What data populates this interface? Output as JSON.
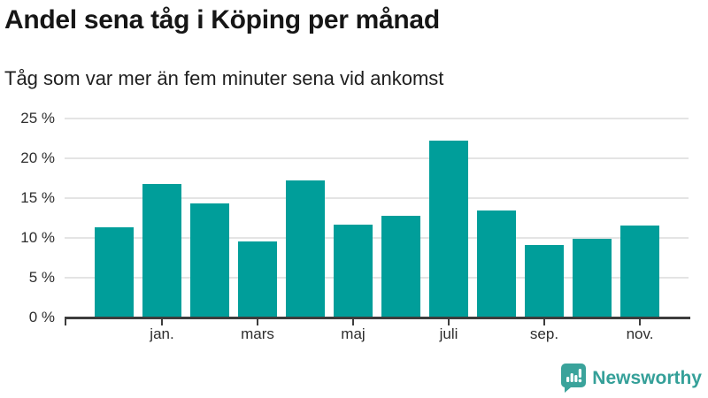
{
  "header": {
    "title": "Andel sena tåg i Köping per månad",
    "subtitle": "Tåg som var mer än fem minuter sena vid ankomst"
  },
  "footer": {
    "brand": "Newsworthy",
    "logo_icon": "newsworthy-pin-chart-icon"
  },
  "colors": {
    "bar": "#009e9a",
    "brand": "#3aa39b",
    "grid": "#e4e4e4",
    "axis": "#3d3d3d",
    "title_text": "#161616",
    "tick_text": "#2e2e2e"
  },
  "chart_data": {
    "type": "bar",
    "title": "Andel sena tåg i Köping per månad",
    "subtitle": "Tåg som var mer än fem minuter sena vid ankomst",
    "categories": [
      "",
      "jan.",
      "",
      "mars",
      "",
      "maj",
      "",
      "juli",
      "",
      "sep.",
      "",
      "nov."
    ],
    "values": [
      11.3,
      16.8,
      14.3,
      9.5,
      17.2,
      11.7,
      12.8,
      22.2,
      13.4,
      9.1,
      9.9,
      11.5
    ],
    "unit": "%",
    "y_ticks": [
      0,
      5,
      10,
      15,
      20,
      25
    ],
    "y_tick_labels": [
      "0 %",
      "5 %",
      "10 %",
      "15 %",
      "20 %",
      "25 %"
    ],
    "ylim": [
      0,
      25
    ],
    "grid": "horizontal",
    "legend": "none",
    "bar_color": "#009e9a"
  }
}
